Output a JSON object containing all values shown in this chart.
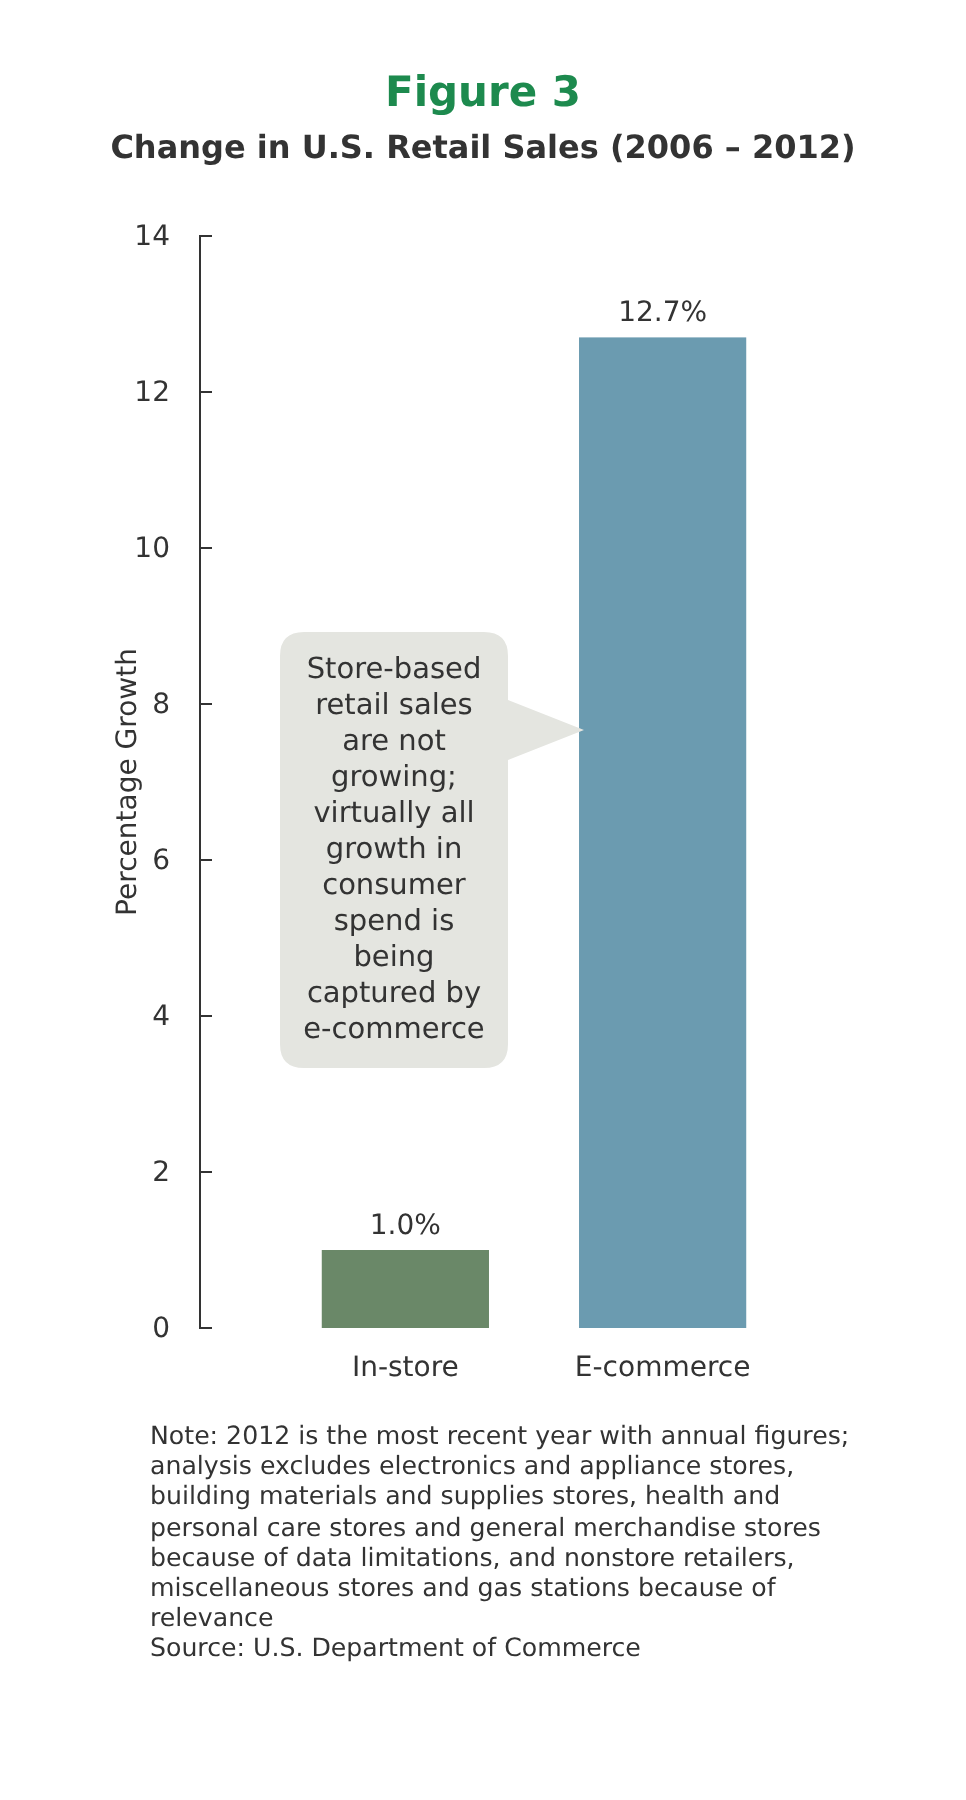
{
  "chart_data": {
    "type": "bar",
    "title": "Figure 3",
    "subtitle": "Change in U.S. Retail Sales (2006 – 2012)",
    "ylabel": "Percentage Growth",
    "categories": [
      "In-store",
      "E-commerce"
    ],
    "values": [
      1.0,
      12.7
    ],
    "colors": [
      "#6a8868",
      "#6b9bb0"
    ],
    "value_labels": [
      "1.0%",
      "12.7%"
    ],
    "ylim": [
      0,
      14
    ],
    "yticks": [
      0,
      2,
      4,
      6,
      8,
      10,
      12,
      14
    ],
    "grid": false,
    "annotations": [
      "Store-based retail sales are not growing; virtually all growth in consumer spend is being captured by e-commerce",
      "Note: 2012 is the most recent year with annual figures; analysis excludes electronics and appliance stores, building materials and supplies stores, health and personal care stores and general merchandise stores because of data limitations, and nonstore retailers, miscellaneous stores and gas stations because of relevance",
      "Source: U.S. Department of Commerce"
    ]
  }
}
